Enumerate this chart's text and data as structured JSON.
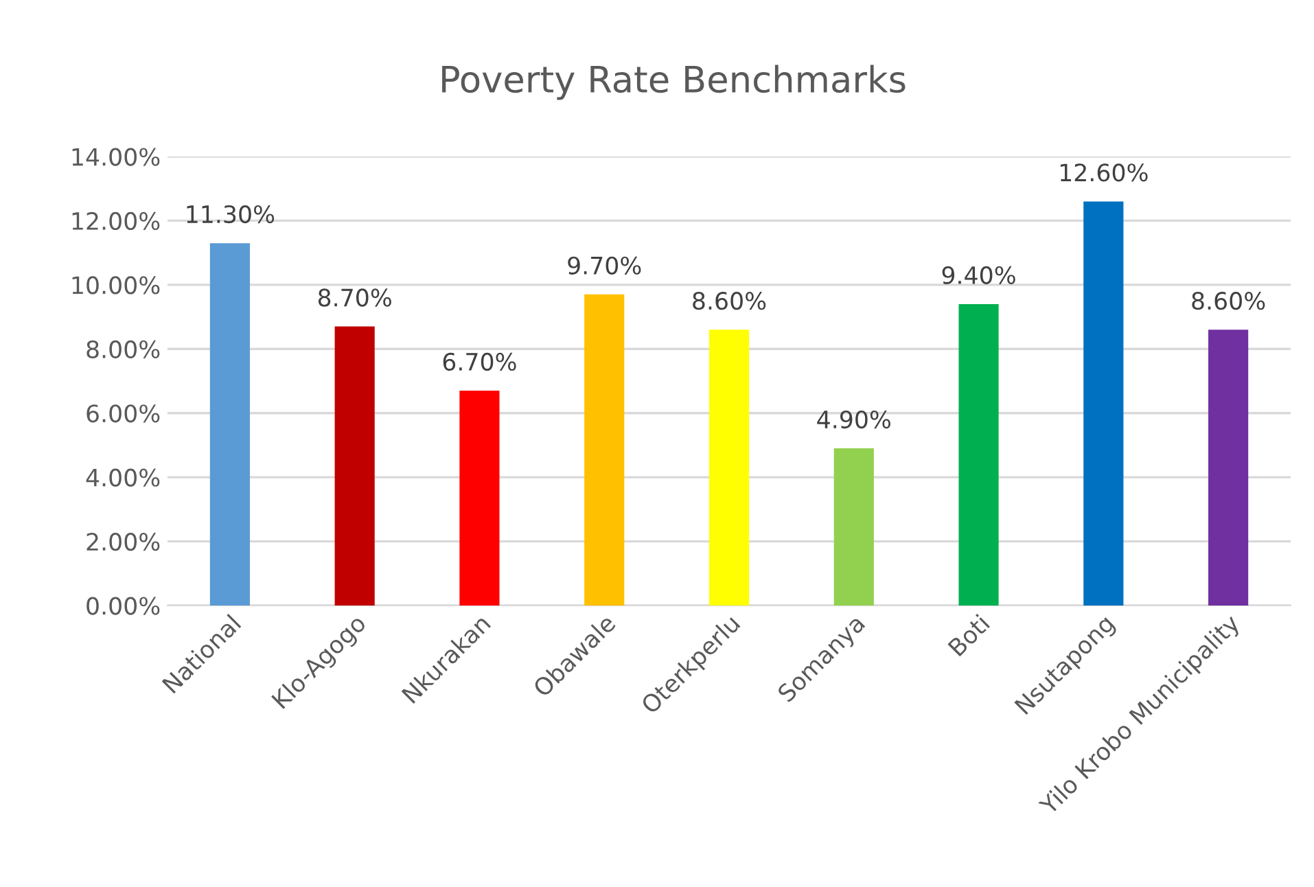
{
  "chart_data": {
    "type": "bar",
    "title": "Poverty Rate Benchmarks",
    "categories": [
      "National",
      "Klo-Agogo",
      "Nkurakan",
      "Obawale",
      "Oterkperlu",
      "Somanya",
      "Boti",
      "Nsutapong",
      "Yilo Krobo Municipality"
    ],
    "values": [
      11.3,
      8.7,
      6.7,
      9.7,
      8.6,
      4.9,
      9.4,
      12.6,
      8.6
    ],
    "value_labels": [
      "11.30%",
      "8.70%",
      "6.70%",
      "9.70%",
      "8.60%",
      "4.90%",
      "9.40%",
      "12.60%",
      "8.60%"
    ],
    "colors": [
      "#5b9bd5",
      "#c00000",
      "#ff0000",
      "#ffc000",
      "#ffff00",
      "#92d050",
      "#00b050",
      "#0070c0",
      "#7030a0"
    ],
    "ylim": [
      0,
      14
    ],
    "yticks": [
      {
        "value": 0,
        "label": "0.00%"
      },
      {
        "value": 2,
        "label": "2.00%"
      },
      {
        "value": 4,
        "label": "4.00%"
      },
      {
        "value": 6,
        "label": "6.00%"
      },
      {
        "value": 8,
        "label": "8.00%"
      },
      {
        "value": 10,
        "label": "10.00%"
      },
      {
        "value": 12,
        "label": "12.00%"
      },
      {
        "value": 14,
        "label": "14.00%"
      }
    ],
    "grid": "y",
    "legend": false
  }
}
